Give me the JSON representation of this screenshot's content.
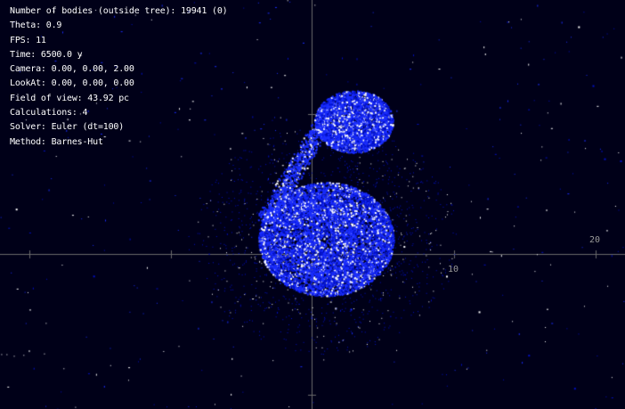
{
  "hud": {
    "lines": [
      "Number of bodies (outside tree): 19941 (0)",
      "Theta: 0.9",
      "FPS: 11",
      "Time: 6500.0 y",
      "Camera: 0.00, 0.00, 2.00",
      "LookAt: 0.00, 0.00, 0.00",
      "Field of view: 43.92 pc",
      "Calculations: 4",
      "Solver: Euler (dt=100)",
      "Method: Barnes-Hut"
    ]
  },
  "axes": {
    "tick_labels": [
      "10",
      "20"
    ]
  },
  "colors": {
    "background": "#000018",
    "particles": "#1a2dff",
    "particles_dark": "#0010c8",
    "stars": "#ffffff",
    "axes": "#6a6a6a",
    "tick_text": "#9a9a9a"
  }
}
